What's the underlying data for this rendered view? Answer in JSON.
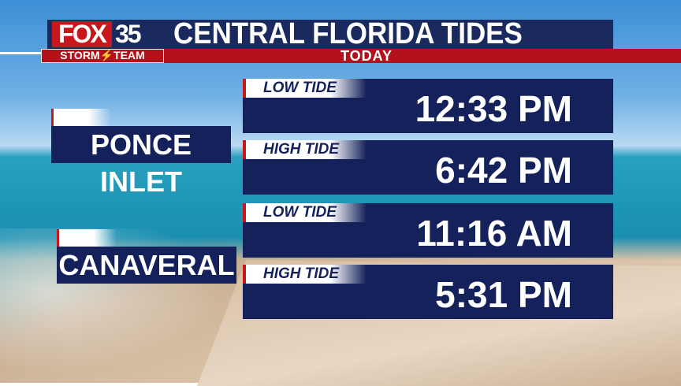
{
  "header": {
    "brand": "FOX",
    "channel": "35",
    "team": "STORM⚡TEAM",
    "title": "CENTRAL FLORIDA TIDES",
    "subtitle": "TODAY"
  },
  "locations": [
    {
      "name": "PONCE INLET",
      "tides": [
        {
          "label": "LOW TIDE",
          "time": "12:33 PM"
        },
        {
          "label": "HIGH TIDE",
          "time": "6:42 PM"
        }
      ]
    },
    {
      "name": "CANAVERAL",
      "tides": [
        {
          "label": "LOW TIDE",
          "time": "11:16 AM"
        },
        {
          "label": "HIGH TIDE",
          "time": "5:31 PM"
        }
      ]
    }
  ],
  "colors": {
    "navy": "#14215a",
    "red": "#b3121a"
  }
}
